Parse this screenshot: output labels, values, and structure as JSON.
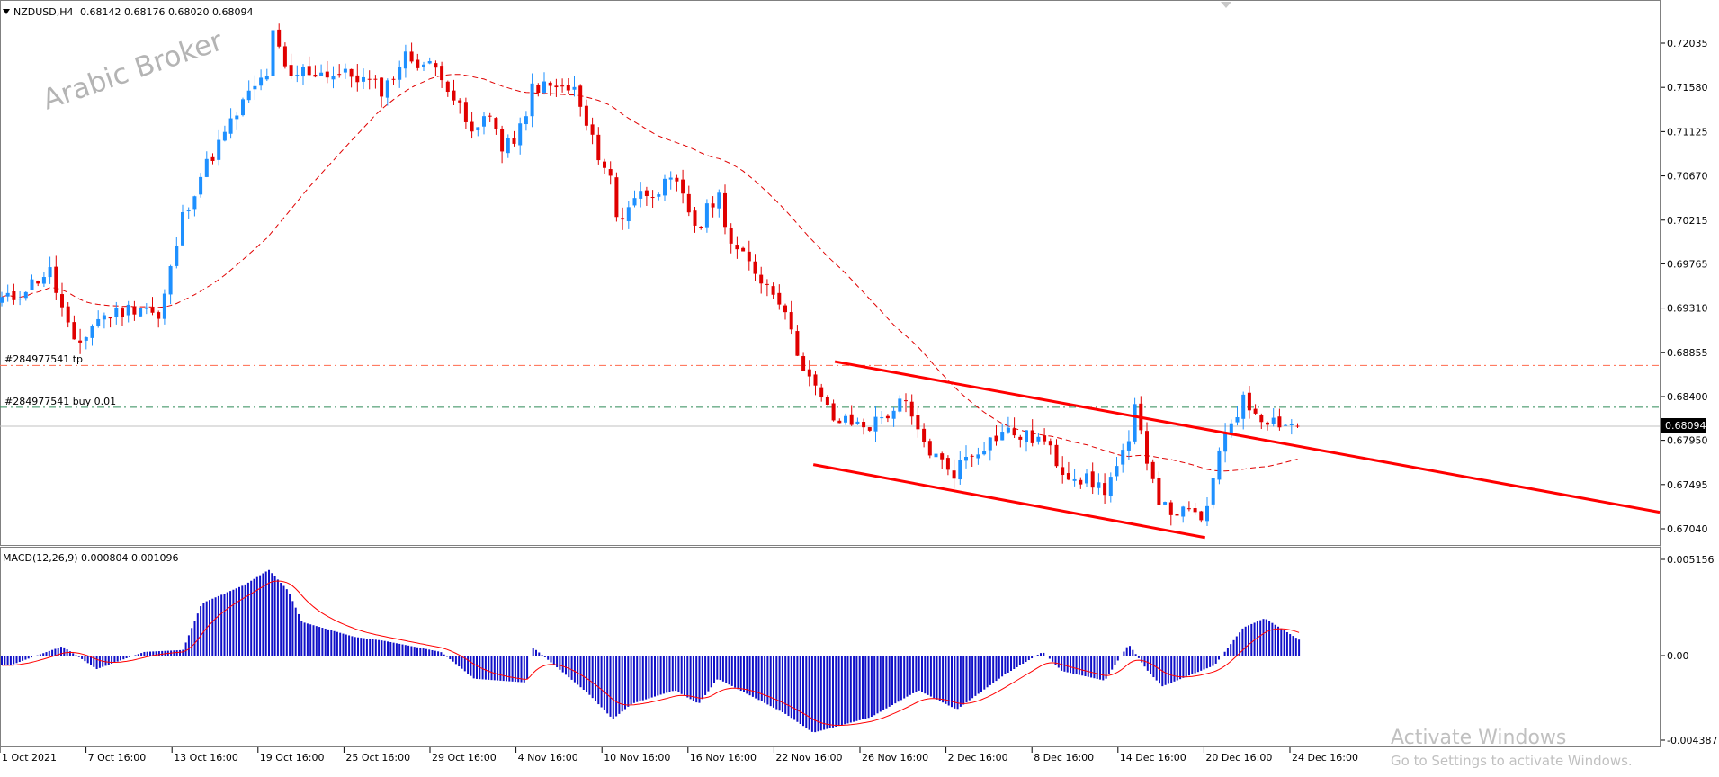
{
  "header": {
    "symbol_label": "NZDUSD,H4",
    "quote": "0.68142 0.68176 0.68020 0.68094"
  },
  "watermark": "Arabic Broker",
  "orders": {
    "tp_label": "#284977541 tp",
    "buy_label": "#284977541 buy 0.01"
  },
  "current_price_tag": "0.68094",
  "indicator": {
    "label": "MACD(12,26,9) 0.000804 0.001096"
  },
  "activate_windows": {
    "title": "Activate Windows",
    "subtitle": "Go to Settings to activate Windows."
  },
  "colors": {
    "bull": "#1e90ff",
    "bear": "#e00000",
    "ma": "#e00000",
    "channel": "#ff0000",
    "tp_line": "#ff6a4d",
    "buy_line": "#2e8b57",
    "macd_hist": "#1010c8",
    "macd_signal": "#ff0000"
  },
  "chart_data": [
    {
      "type": "candlestick",
      "title": "NZDUSD,H4",
      "x_tick_labels": [
        "1 Oct 2021",
        "7 Oct 16:00",
        "13 Oct 16:00",
        "19 Oct 16:00",
        "25 Oct 16:00",
        "29 Oct 16:00",
        "4 Nov 16:00",
        "10 Nov 16:00",
        "16 Nov 16:00",
        "22 Nov 16:00",
        "26 Nov 16:00",
        "2 Dec 16:00",
        "8 Dec 16:00",
        "14 Dec 16:00",
        "20 Dec 16:00",
        "24 Dec 16:00"
      ],
      "y_ticks": [
        0.72035,
        0.7158,
        0.71125,
        0.7067,
        0.70215,
        0.69765,
        0.6931,
        0.68855,
        0.684,
        0.6795,
        0.67495,
        0.6704
      ],
      "y_tick_labels": [
        "0.72035",
        "0.71580",
        "0.71125",
        "0.70670",
        "0.70215",
        "0.69765",
        "0.69310",
        "0.68855",
        "0.68400",
        "0.67950",
        "0.67495",
        "0.67040"
      ],
      "ylim": [
        0.6696,
        0.7235
      ],
      "last_close": 0.68094,
      "close_path": [
        {
          "date": "1 Oct 2021",
          "close": 0.694
        },
        {
          "date": "4 Oct 2021",
          "close": 0.697
        },
        {
          "date": "6 Oct 2021",
          "close": 0.6888
        },
        {
          "date": "7 Oct 16:00",
          "close": 0.692
        },
        {
          "date": "11 Oct 2021",
          "close": 0.6935
        },
        {
          "date": "12 Oct 2021",
          "close": 0.6918
        },
        {
          "date": "13 Oct 16:00",
          "close": 0.7025
        },
        {
          "date": "15 Oct 2021",
          "close": 0.707
        },
        {
          "date": "18 Oct 2021",
          "close": 0.7145
        },
        {
          "date": "19 Oct 16:00",
          "close": 0.7175
        },
        {
          "date": "20 Oct 2021",
          "close": 0.7215
        },
        {
          "date": "21 Oct 2021",
          "close": 0.7165
        },
        {
          "date": "22 Oct 2021",
          "close": 0.7175
        },
        {
          "date": "25 Oct 16:00",
          "close": 0.717
        },
        {
          "date": "27 Oct 2021",
          "close": 0.7155
        },
        {
          "date": "28 Oct 2021",
          "close": 0.719
        },
        {
          "date": "29 Oct 16:00",
          "close": 0.7175
        },
        {
          "date": "1 Nov 2021",
          "close": 0.7105
        },
        {
          "date": "2 Nov 2021",
          "close": 0.714
        },
        {
          "date": "3 Nov 2021",
          "close": 0.709
        },
        {
          "date": "4 Nov 16:00",
          "close": 0.7125
        },
        {
          "date": "5 Nov 2021",
          "close": 0.716
        },
        {
          "date": "8 Nov 2021",
          "close": 0.7155
        },
        {
          "date": "9 Nov 2021",
          "close": 0.711
        },
        {
          "date": "10 Nov 16:00",
          "close": 0.706
        },
        {
          "date": "11 Nov 2021",
          "close": 0.7015
        },
        {
          "date": "12 Nov 2021",
          "close": 0.7045
        },
        {
          "date": "15 Nov 2021",
          "close": 0.706
        },
        {
          "date": "16 Nov 16:00",
          "close": 0.701
        },
        {
          "date": "17 Nov 2021",
          "close": 0.7025
        },
        {
          "date": "18 Nov 2021",
          "close": 0.705
        },
        {
          "date": "19 Nov 2021",
          "close": 0.6995
        },
        {
          "date": "22 Nov 16:00",
          "close": 0.6935
        },
        {
          "date": "23 Nov 2021",
          "close": 0.69
        },
        {
          "date": "24 Nov 2021",
          "close": 0.685
        },
        {
          "date": "25 Nov 2021",
          "close": 0.6815
        },
        {
          "date": "26 Nov 16:00",
          "close": 0.681
        },
        {
          "date": "29 Nov 2021",
          "close": 0.6835
        },
        {
          "date": "30 Nov 2021",
          "close": 0.68
        },
        {
          "date": "1 Dec 2021",
          "close": 0.678
        },
        {
          "date": "2 Dec 16:00",
          "close": 0.676
        },
        {
          "date": "3 Dec 2021",
          "close": 0.6775
        },
        {
          "date": "6 Dec 2021",
          "close": 0.6805
        },
        {
          "date": "7 Dec 2021",
          "close": 0.68
        },
        {
          "date": "8 Dec 16:00",
          "close": 0.6795
        },
        {
          "date": "9 Dec 2021",
          "close": 0.6788
        },
        {
          "date": "10 Dec 2021",
          "close": 0.6765
        },
        {
          "date": "13 Dec 2021",
          "close": 0.6745
        },
        {
          "date": "14 Dec 16:00",
          "close": 0.679
        },
        {
          "date": "15 Dec 2021",
          "close": 0.683
        },
        {
          "date": "16 Dec 2021",
          "close": 0.6775
        },
        {
          "date": "17 Dec 2021",
          "close": 0.6725
        },
        {
          "date": "20 Dec 2021",
          "close": 0.6715
        },
        {
          "date": "20 Dec 16:00",
          "close": 0.6755
        },
        {
          "date": "21 Dec 2021",
          "close": 0.68
        },
        {
          "date": "22 Dec 2021",
          "close": 0.6835
        },
        {
          "date": "23 Dec 2021",
          "close": 0.6818
        },
        {
          "date": "24 Dec 16:00",
          "close": 0.6809
        }
      ],
      "moving_average": "dashed red line",
      "horizontal_levels": [
        {
          "label": "#284977541 tp",
          "price": 0.6872
        },
        {
          "label": "#284977541 buy 0.01",
          "price": 0.6829
        },
        {
          "price": 0.68094
        }
      ],
      "trendlines": [
        {
          "from": {
            "date": "25 Nov 2021",
            "price": 0.6876
          },
          "to": {
            "date": "after 24 Dec 16:00",
            "price": 0.6721
          }
        },
        {
          "from": {
            "date": "24 Nov 2021",
            "price": 0.677
          },
          "to": {
            "date": "20 Dec 2021",
            "price": 0.6695
          }
        }
      ],
      "grid": false
    },
    {
      "type": "bar",
      "title": "MACD(12,26,9) 0.000804 0.001096",
      "y_tick_labels": [
        "0.005156",
        "0.00",
        "-0.004387"
      ],
      "ylim": [
        -0.004387,
        0.005156
      ],
      "histogram_path": [
        {
          "date": "1 Oct 2021",
          "value": -0.0005
        },
        {
          "date": "5 Oct 2021",
          "value": 0.0005
        },
        {
          "date": "7 Oct 16:00",
          "value": -0.0007
        },
        {
          "date": "11 Oct 2021",
          "value": 0.0002
        },
        {
          "date": "13 Oct 16:00",
          "value": 0.0003
        },
        {
          "date": "15 Oct 2021",
          "value": 0.0028
        },
        {
          "date": "18 Oct 2021",
          "value": 0.0038
        },
        {
          "date": "19 Oct 16:00",
          "value": 0.0046
        },
        {
          "date": "21 Oct 2021",
          "value": 0.0035
        },
        {
          "date": "22 Oct 2021",
          "value": 0.0018
        },
        {
          "date": "25 Oct 16:00",
          "value": 0.001
        },
        {
          "date": "27 Oct 2021",
          "value": 0.0008
        },
        {
          "date": "29 Oct 16:00",
          "value": 0.0002
        },
        {
          "date": "1 Nov 2021",
          "value": -0.0012
        },
        {
          "date": "4 Nov 16:00",
          "value": -0.0014
        },
        {
          "date": "5 Nov 2021",
          "value": 0.0005
        },
        {
          "date": "9 Nov 2021",
          "value": -0.002
        },
        {
          "date": "10 Nov 16:00",
          "value": -0.0033
        },
        {
          "date": "12 Nov 2021",
          "value": -0.0025
        },
        {
          "date": "15 Nov 2021",
          "value": -0.0018
        },
        {
          "date": "16 Nov 16:00",
          "value": -0.0025
        },
        {
          "date": "18 Nov 2021",
          "value": -0.0012
        },
        {
          "date": "22 Nov 16:00",
          "value": -0.003
        },
        {
          "date": "24 Nov 2021",
          "value": -0.004
        },
        {
          "date": "26 Nov 16:00",
          "value": -0.0032
        },
        {
          "date": "30 Nov 2021",
          "value": -0.0018
        },
        {
          "date": "2 Dec 16:00",
          "value": -0.0028
        },
        {
          "date": "6 Dec 2021",
          "value": -0.001
        },
        {
          "date": "8 Dec 16:00",
          "value": 0.0002
        },
        {
          "date": "10 Dec 2021",
          "value": -0.0008
        },
        {
          "date": "13 Dec 2021",
          "value": -0.0013
        },
        {
          "date": "14 Dec 16:00",
          "value": 0.0006
        },
        {
          "date": "16 Dec 2021",
          "value": -0.0008
        },
        {
          "date": "17 Dec 2021",
          "value": -0.0016
        },
        {
          "date": "20 Dec 16:00",
          "value": -0.0005
        },
        {
          "date": "22 Dec 2021",
          "value": 0.0015
        },
        {
          "date": "23 Dec 2021",
          "value": 0.002
        },
        {
          "date": "24 Dec 16:00",
          "value": 0.0008
        }
      ],
      "signal_line": "red line"
    }
  ]
}
